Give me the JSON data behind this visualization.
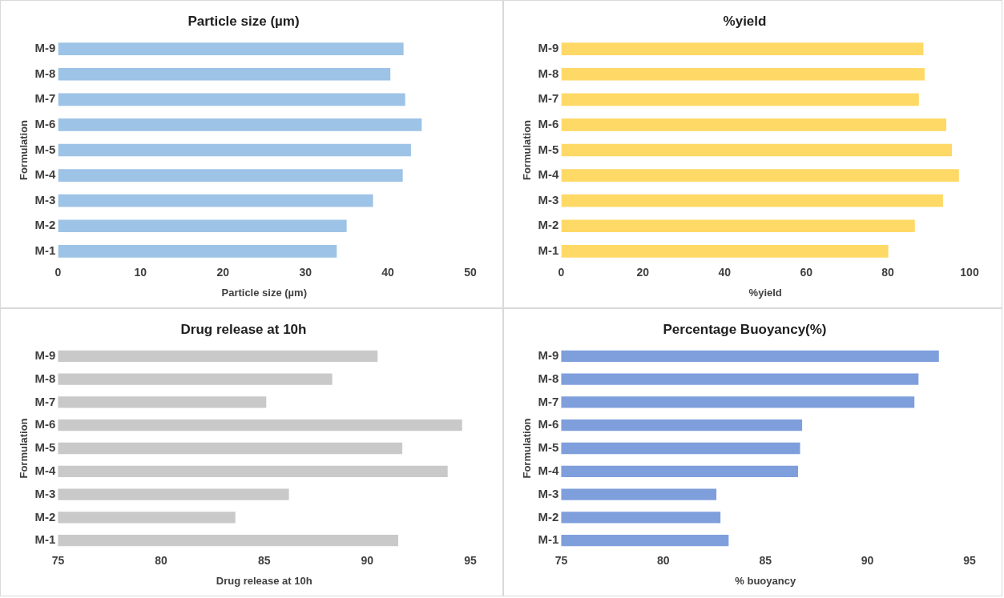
{
  "chart_data": [
    {
      "type": "bar",
      "orientation": "horizontal",
      "title": "Particle size (µm)",
      "xlabel": "Particle size (µm)",
      "ylabel": "Formulation",
      "categories": [
        "M-9",
        "M-8",
        "M-7",
        "M-6",
        "M-5",
        "M-4",
        "M-3",
        "M-2",
        "M-1"
      ],
      "values": [
        41.9,
        40.3,
        42.1,
        44.1,
        42.8,
        41.8,
        38.2,
        35.0,
        33.8
      ],
      "color": "#9dc3e6",
      "xlim": [
        0,
        50
      ],
      "xticks": [
        0,
        10,
        20,
        30,
        40,
        50
      ],
      "grid": false,
      "legend": false
    },
    {
      "type": "bar",
      "orientation": "horizontal",
      "title": "%yield",
      "xlabel": "%yield",
      "ylabel": "Formulation",
      "categories": [
        "M-9",
        "M-8",
        "M-7",
        "M-6",
        "M-5",
        "M-4",
        "M-3",
        "M-2",
        "M-1"
      ],
      "values": [
        88.7,
        89.0,
        87.6,
        94.3,
        95.7,
        97.4,
        93.5,
        86.6,
        80.1
      ],
      "color": "#ffd966",
      "xlim": [
        0,
        100
      ],
      "xticks": [
        0,
        20,
        40,
        60,
        80,
        100
      ],
      "grid": false,
      "legend": false
    },
    {
      "type": "bar",
      "orientation": "horizontal",
      "title": "Drug release at 10h",
      "xlabel": "Drug release at 10h",
      "ylabel": "Formulation",
      "categories": [
        "M-9",
        "M-8",
        "M-7",
        "M-6",
        "M-5",
        "M-4",
        "M-3",
        "M-2",
        "M-1"
      ],
      "values": [
        90.5,
        88.3,
        85.1,
        94.6,
        91.7,
        93.9,
        86.2,
        83.6,
        91.5
      ],
      "color": "#c9c9c9",
      "xlim": [
        75,
        95
      ],
      "xticks": [
        75,
        80,
        85,
        90,
        95
      ],
      "grid": false,
      "legend": false
    },
    {
      "type": "bar",
      "orientation": "horizontal",
      "title": "Percentage Buoyancy(%)",
      "xlabel": "% buoyancy",
      "ylabel": "Formulation",
      "categories": [
        "M-9",
        "M-8",
        "M-7",
        "M-6",
        "M-5",
        "M-4",
        "M-3",
        "M-2",
        "M-1"
      ],
      "values": [
        93.5,
        92.5,
        92.3,
        86.8,
        86.7,
        86.6,
        82.6,
        82.8,
        83.2
      ],
      "color": "#7f9fdc",
      "xlim": [
        75,
        95
      ],
      "xticks": [
        75,
        80,
        85,
        90,
        95
      ],
      "grid": false,
      "legend": false
    }
  ]
}
